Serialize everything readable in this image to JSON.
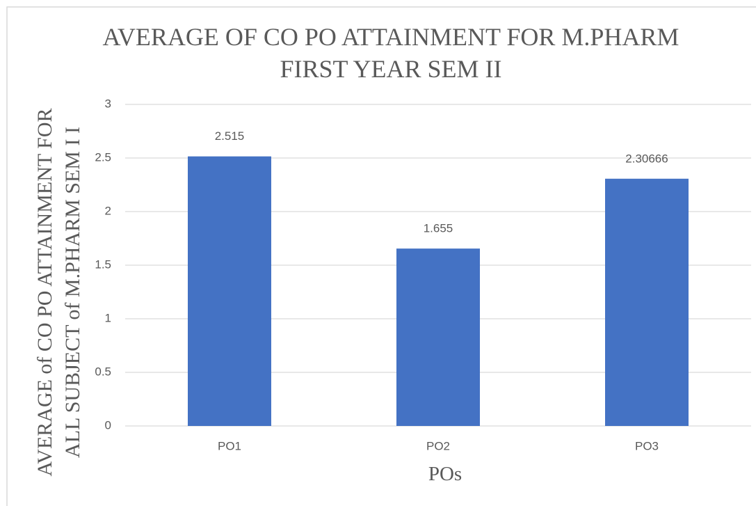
{
  "chart_data": {
    "type": "bar",
    "title": "AVERAGE OF CO PO ATTAINMENT FOR M.PHARM FIRST YEAR SEM II",
    "x_label": "POs",
    "y_label": "AVERAGE of CO PO ATTAINMENT FOR ALL SUBJECT of M.PHARM SEM I I",
    "categories": [
      "PO1",
      "PO2",
      "PO3"
    ],
    "values": [
      2.515,
      1.655,
      2.30666
    ],
    "color": "#4472c4",
    "ylim": [
      0,
      3
    ],
    "yticks": [
      0,
      0.5,
      1,
      1.5,
      2,
      2.5,
      3
    ],
    "grid": true
  }
}
